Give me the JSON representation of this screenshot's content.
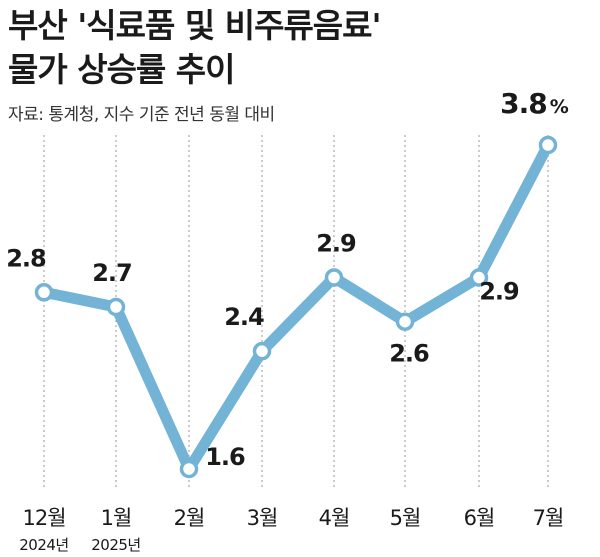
{
  "chart_data": {
    "type": "line",
    "title_line1": "부산 '식료품 및 비주류음료'",
    "title_line2": "물가 상승률 추이",
    "source": "자료: 통계청, 지수 기준 전년 동월 대비",
    "categories": [
      "12월",
      "1월",
      "2월",
      "3월",
      "4월",
      "5월",
      "6월",
      "7월"
    ],
    "year_labels": [
      "2024년",
      "2025년",
      "",
      "",
      "",
      "",
      "",
      ""
    ],
    "values": [
      2.8,
      2.7,
      1.6,
      2.4,
      2.9,
      2.6,
      2.9,
      3.8
    ],
    "value_labels": [
      "2.8",
      "2.7",
      "1.6",
      "2.4",
      "2.9",
      "2.6",
      "2.9",
      "3.8"
    ],
    "last_value_unit": "%",
    "line_color": "#72b3d6",
    "grid": "vertical dashed lines at each category",
    "legend": "none"
  }
}
